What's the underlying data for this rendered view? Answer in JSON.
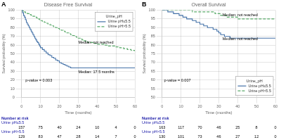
{
  "chart_data": [
    {
      "type": "step",
      "panel_label": "A",
      "title": "Disease Free Survival",
      "x_label": "Time (months)",
      "y_label": "Survival probability (%)",
      "xlim": [
        0,
        60
      ],
      "ylim": [
        0,
        100
      ],
      "xticks": [
        0,
        10,
        20,
        30,
        40,
        50,
        60
      ],
      "yticks": [
        0,
        10,
        20,
        30,
        40,
        50,
        60,
        70,
        80,
        90,
        100
      ],
      "grid": true,
      "legend": "upper right",
      "legend_title": "Urine_pH",
      "series": [
        {
          "name": "Urine pH≤5.5",
          "color": "#4472a8",
          "line_style": "solid",
          "x": [
            0,
            0.5,
            1,
            1.5,
            2,
            2.5,
            3,
            3.5,
            4,
            4.5,
            5,
            5.5,
            6,
            6.5,
            7,
            7.5,
            8,
            8.5,
            9,
            9.5,
            10,
            11,
            12,
            13,
            14,
            15,
            16,
            17,
            18,
            19,
            20,
            21,
            22,
            23,
            24,
            25,
            26,
            27,
            28,
            29,
            30,
            31,
            32,
            33,
            34,
            35,
            36,
            37,
            38,
            39,
            40,
            42,
            44,
            46,
            48,
            50,
            52,
            54,
            56,
            58,
            60
          ],
          "values": [
            100,
            97,
            94,
            92,
            89,
            86,
            84,
            82,
            80,
            78,
            76,
            74,
            72,
            70,
            68,
            66,
            64,
            63,
            61,
            59,
            57,
            55,
            53,
            51,
            49,
            48,
            46,
            45,
            43,
            42,
            40,
            39,
            38,
            37,
            36,
            35,
            34,
            34,
            34,
            34,
            34,
            34,
            34,
            34,
            34,
            34,
            34,
            34,
            34,
            34,
            34,
            34,
            34,
            34,
            34,
            34,
            34,
            34,
            34,
            34,
            34
          ]
        },
        {
          "name": "Urine pH>5.5",
          "color": "#5aaa6a",
          "line_style": "dashed",
          "x": [
            0,
            0.5,
            1,
            1.5,
            2,
            2.5,
            3,
            3.5,
            4,
            4.5,
            5,
            5.5,
            6,
            6.5,
            7,
            7.5,
            8,
            8.5,
            9,
            9.5,
            10,
            11,
            12,
            13,
            14,
            15,
            16,
            17,
            18,
            19,
            20,
            21,
            22,
            23,
            24,
            25,
            26,
            27,
            28,
            29,
            30,
            31,
            32,
            33,
            34,
            35,
            36,
            37,
            38,
            39,
            40,
            42,
            44,
            46,
            48,
            50,
            52,
            54,
            56,
            58,
            60
          ],
          "values": [
            100,
            99,
            98,
            98,
            97,
            97,
            96,
            96,
            95,
            95,
            94,
            94,
            93,
            93,
            92,
            92,
            91,
            90,
            90,
            89,
            88,
            87,
            86,
            85,
            84,
            83,
            82,
            81,
            80,
            79,
            78,
            77,
            76,
            75,
            74,
            73,
            72,
            71,
            70,
            69,
            68,
            67,
            66,
            65,
            64,
            63,
            63,
            63,
            62,
            62,
            61,
            61,
            60,
            59,
            59,
            58,
            57,
            56,
            55,
            54,
            53
          ]
        }
      ],
      "annotations": [
        {
          "text": "p-value = 0.003",
          "x": 2,
          "y": 18
        },
        {
          "text": "Median: not reached",
          "x": 30,
          "y": 62
        },
        {
          "text": "Median: 17.5 months",
          "x": 30,
          "y": 28
        }
      ],
      "risk_table": {
        "title": "Number at risk",
        "color": "#2020aa",
        "times": [
          0,
          10,
          20,
          30,
          40,
          50,
          60
        ],
        "rows": [
          {
            "label": "Urine pH≤5.5",
            "values": [
              157,
              75,
              40,
              24,
              10,
              4,
              0
            ]
          },
          {
            "label": "Urine pH>5.5",
            "values": [
              129,
              83,
              47,
              28,
              14,
              7,
              0
            ]
          }
        ]
      }
    },
    {
      "type": "step",
      "panel_label": "B",
      "title": "Overall Survival",
      "x_label": "Time (months)",
      "y_label": "Survival probability (%)",
      "xlim": [
        0,
        60
      ],
      "ylim": [
        50,
        100
      ],
      "xticks": [
        0,
        10,
        20,
        30,
        40,
        50,
        60
      ],
      "yticks": [
        50,
        55,
        60,
        65,
        70,
        75,
        80,
        85,
        90,
        95,
        100
      ],
      "grid": true,
      "legend": "lower right",
      "legend_title": "Urine_pH",
      "series": [
        {
          "name": "Urine pH≤5.5",
          "color": "#4472a8",
          "line_style": "solid",
          "x": [
            0,
            1,
            2,
            3,
            4,
            5,
            6,
            7,
            8,
            9,
            10,
            11,
            12,
            13,
            14,
            15,
            16,
            17,
            18,
            19,
            20,
            21,
            22,
            23,
            24,
            25,
            26,
            27,
            28,
            29,
            30,
            31,
            32,
            33,
            34,
            35,
            36,
            37,
            38,
            39,
            40,
            42,
            44,
            46,
            48,
            50,
            52,
            54,
            56,
            58,
            60
          ],
          "values": [
            100,
            100,
            100,
            99,
            99,
            99,
            98,
            98,
            98,
            97,
            97,
            96,
            96,
            95,
            95,
            95,
            94,
            94,
            93,
            93,
            92,
            92,
            91,
            91,
            90,
            90,
            90,
            89,
            89,
            88,
            87,
            86,
            86,
            85,
            85,
            85,
            84,
            84,
            84,
            84,
            84,
            84,
            84,
            84,
            84,
            84,
            84,
            84,
            84,
            84,
            84
          ]
        },
        {
          "name": "Urine pH>5.5",
          "color": "#5aaa6a",
          "line_style": "dashed",
          "x": [
            0,
            1,
            2,
            3,
            4,
            5,
            6,
            7,
            8,
            9,
            10,
            11,
            12,
            13,
            14,
            15,
            16,
            17,
            18,
            19,
            20,
            21,
            22,
            23,
            24,
            25,
            26,
            27,
            28,
            29,
            30,
            31,
            32,
            33,
            34,
            35,
            36,
            37,
            38,
            39,
            40,
            42,
            44,
            46,
            48,
            50,
            52,
            54,
            56,
            58,
            60
          ],
          "values": [
            100,
            100,
            100,
            100,
            100,
            100,
            100,
            100,
            100,
            100,
            100,
            100,
            100,
            100,
            100,
            100,
            99,
            99,
            99,
            99,
            99,
            99,
            99,
            99,
            99,
            99,
            99,
            99,
            98,
            98,
            98,
            97,
            97,
            97,
            96,
            96,
            96,
            96,
            96,
            96,
            95,
            95,
            95,
            95,
            95,
            95,
            95,
            95,
            95,
            95,
            95
          ]
        }
      ],
      "annotations": [
        {
          "text": "p-value = 0.007",
          "x": 1,
          "y": 59
        },
        {
          "text": "Median: not reached",
          "x": 32,
          "y": 96.5
        },
        {
          "text": "Median: not reached",
          "x": 32,
          "y": 83
        }
      ],
      "risk_table": {
        "title": "Number at risk",
        "color": "#2020aa",
        "times": [
          0,
          10,
          20,
          30,
          40,
          50,
          60
        ],
        "rows": [
          {
            "label": "Urine pH≤5.5",
            "values": [
              163,
              117,
              70,
              46,
              25,
              8,
              0
            ]
          },
          {
            "label": "Urine pH>5.5",
            "values": [
              130,
              101,
              73,
              46,
              27,
              12,
              0
            ]
          }
        ]
      }
    }
  ]
}
